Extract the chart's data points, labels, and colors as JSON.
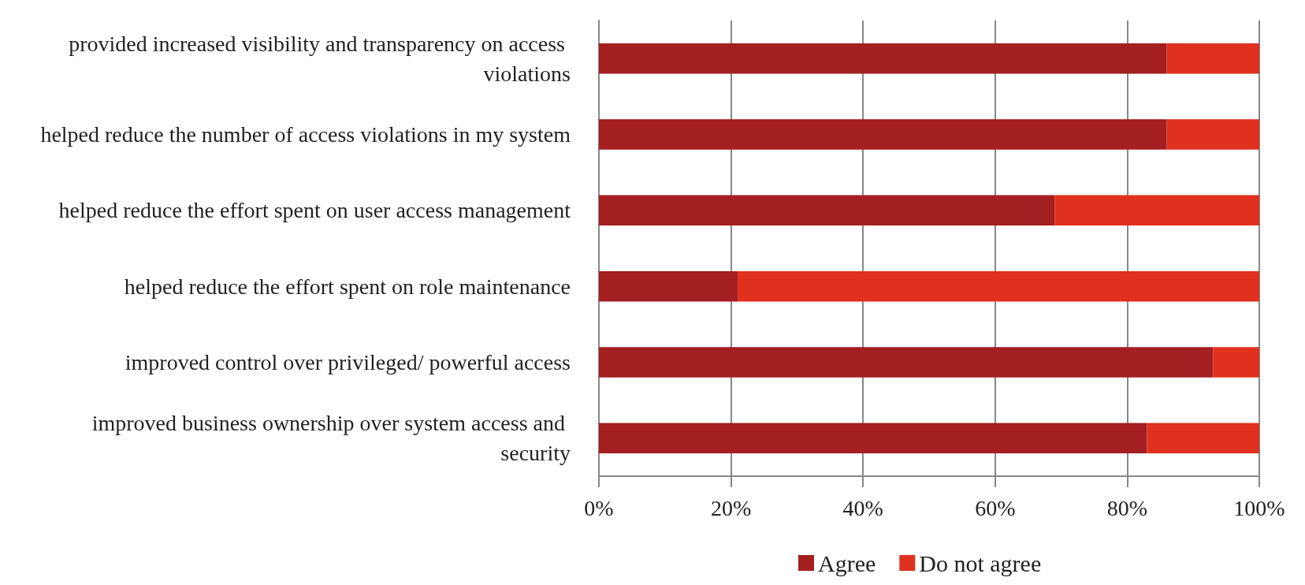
{
  "chart_data": {
    "type": "bar",
    "orientation": "horizontal",
    "stacked": true,
    "categories": [
      "provided increased visibility and transparency on access violations",
      "helped reduce the number of access violations in my system",
      "helped reduce the effort spent on user access management",
      "helped reduce the effort spent on role maintenance",
      "improved control over privileged/ powerful access",
      "improved business ownership over system access and security"
    ],
    "series": [
      {
        "name": "Agree",
        "color": "#a31f20",
        "values": [
          86,
          86,
          69,
          21,
          93,
          83
        ]
      },
      {
        "name": "Do not agree",
        "color": "#e0311f",
        "values": [
          14,
          14,
          31,
          79,
          7,
          17
        ]
      }
    ],
    "xlim": [
      0,
      100
    ],
    "xticks": [
      {
        "value": 0,
        "label": "0%"
      },
      {
        "value": 20,
        "label": "20%"
      },
      {
        "value": 40,
        "label": "40%"
      },
      {
        "value": 60,
        "label": "60%"
      },
      {
        "value": 80,
        "label": "80%"
      },
      {
        "value": 100,
        "label": "100%"
      }
    ],
    "grid": "x",
    "legend": "bottom"
  }
}
